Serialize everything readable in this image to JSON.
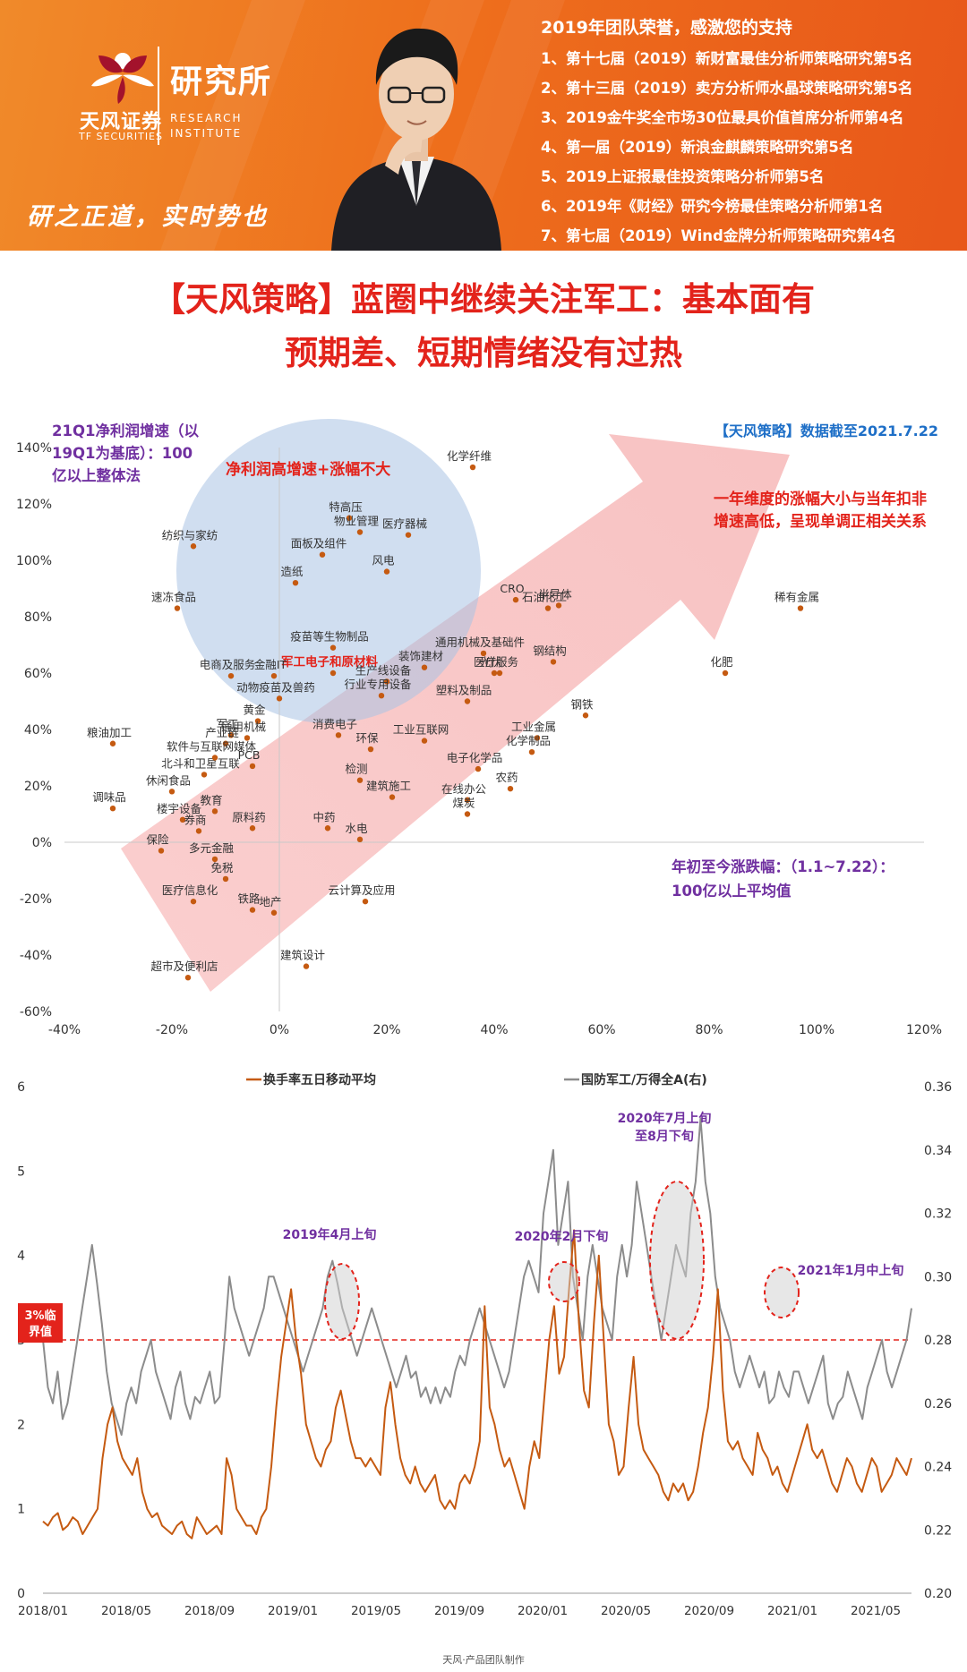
{
  "banner": {
    "logo_name": "天风证券",
    "logo_sub": "TF SECURITIES",
    "institute_cn": "研究所",
    "institute_en": [
      "RESEARCH",
      "INSTITUTE"
    ],
    "slogan": "研之正道，实时势也",
    "honors_title": "2019年团队荣誉，感激您的支持",
    "honors": [
      "1、第十七届（2019）新财富最佳分析师策略研究第5名",
      "2、第十三届（2019）卖方分析师水晶球策略研究第5名",
      "3、2019金牛奖全市场30位最具价值首席分析师第4名",
      "4、第一届（2019）新浪金麒麟策略研究第5名",
      "5、2019上证报最佳投资策略分析师第5名",
      "6、2019年《财经》研究今榜最佳策略分析师第1名",
      "7、第七届（2019）Wind金牌分析师策略研究第4名"
    ],
    "colors": {
      "banner": "#ee6f1c",
      "title_red": "#e3231b"
    }
  },
  "title_lines": [
    "【天风策略】蓝圈中继续关注军工：基本面有",
    "预期差、短期情绪没有过热"
  ],
  "scatter_annotations": {
    "ylabel": "21Q1净利润增速（以19Q1为基底）：100亿以上整体法",
    "ylabel_lines": [
      "21Q1净利润增速（以",
      "19Q1为基底）：100",
      "亿以上整体法"
    ],
    "source": "【天风策略】数据截至2021.7.22",
    "circle_label": "净利润高增速+涨幅不大",
    "arrow_note_lines": [
      "一年维度的涨幅大小与当年扣非",
      "增速高低，呈现单调正相关关系"
    ],
    "xlabel_lines": [
      "年初至今涨跌幅：（1.1~7.22）：",
      "100亿以上平均值"
    ],
    "highlight_label": "军工电子和原材料"
  },
  "line_annotations": {
    "threshold_label_lines": [
      "3%临",
      "界值"
    ],
    "callouts": [
      "2019年4月上旬",
      "2020年2月下旬",
      "2020年7月上旬",
      "至8月下旬",
      "2021年1月中上旬"
    ]
  },
  "chart_data": [
    {
      "type": "scatter",
      "xlabel": "年初至今涨跌幅：（1.1~7.22）：100亿以上平均值",
      "ylabel": "21Q1净利润增速（以19Q1为基底）：100亿以上整体法",
      "xlim": [
        -0.4,
        1.2
      ],
      "ylim": [
        -0.6,
        1.4
      ],
      "xticks": [
        "-40%",
        "-20%",
        "0%",
        "20%",
        "40%",
        "60%",
        "80%",
        "100%",
        "120%"
      ],
      "yticks": [
        "-60%",
        "-40%",
        "-20%",
        "0%",
        "20%",
        "40%",
        "60%",
        "80%",
        "100%",
        "120%",
        "140%"
      ],
      "point_color": "#c55a11",
      "points": [
        {
          "label": "化学纤维",
          "x": 0.36,
          "y": 1.33
        },
        {
          "label": "纺织与家纺",
          "x": -0.16,
          "y": 1.05
        },
        {
          "label": "特高压",
          "x": 0.13,
          "y": 1.15
        },
        {
          "label": "医疗器械",
          "x": 0.24,
          "y": 1.09
        },
        {
          "label": "物业管理",
          "x": 0.15,
          "y": 1.1
        },
        {
          "label": "面板及组件",
          "x": 0.08,
          "y": 1.02
        },
        {
          "label": "风电",
          "x": 0.2,
          "y": 0.96
        },
        {
          "label": "造纸",
          "x": 0.03,
          "y": 0.92
        },
        {
          "label": "速冻食品",
          "x": -0.19,
          "y": 0.83
        },
        {
          "label": "CRO",
          "x": 0.44,
          "y": 0.86
        },
        {
          "label": "半导体",
          "x": 0.52,
          "y": 0.84
        },
        {
          "label": "石油化工",
          "x": 0.5,
          "y": 0.83
        },
        {
          "label": "稀有金属",
          "x": 0.97,
          "y": 0.83
        },
        {
          "label": "疫苗等生物制品",
          "x": 0.1,
          "y": 0.69
        },
        {
          "label": "通用机械及基础件",
          "x": 0.38,
          "y": 0.67
        },
        {
          "label": "钢结构",
          "x": 0.51,
          "y": 0.64
        },
        {
          "label": "装饰建材",
          "x": 0.27,
          "y": 0.62
        },
        {
          "label": "医疗服务",
          "x": 0.41,
          "y": 0.6
        },
        {
          "label": "光伏",
          "x": 0.4,
          "y": 0.6
        },
        {
          "label": "化肥",
          "x": 0.83,
          "y": 0.6
        },
        {
          "label": "军工电子和原材料",
          "x": 0.1,
          "y": 0.6
        },
        {
          "label": "金融IT",
          "x": -0.01,
          "y": 0.59
        },
        {
          "label": "生产线设备",
          "x": 0.2,
          "y": 0.57
        },
        {
          "label": "塑料及制品",
          "x": 0.35,
          "y": 0.5
        },
        {
          "label": "电商及服务",
          "x": -0.09,
          "y": 0.59
        },
        {
          "label": "动物疫苗及兽药",
          "x": 0.0,
          "y": 0.51
        },
        {
          "label": "行业专用设备",
          "x": 0.19,
          "y": 0.52
        },
        {
          "label": "钢铁",
          "x": 0.57,
          "y": 0.45
        },
        {
          "label": "黄金",
          "x": -0.04,
          "y": 0.43
        },
        {
          "label": "粮油加工",
          "x": -0.31,
          "y": 0.35
        },
        {
          "label": "军工",
          "x": -0.09,
          "y": 0.38
        },
        {
          "label": "通用机械",
          "x": -0.06,
          "y": 0.37
        },
        {
          "label": "产业链",
          "x": -0.1,
          "y": 0.35
        },
        {
          "label": "消费电子",
          "x": 0.11,
          "y": 0.38
        },
        {
          "label": "工业互联网",
          "x": 0.27,
          "y": 0.36
        },
        {
          "label": "工业金属",
          "x": 0.48,
          "y": 0.37
        },
        {
          "label": "环保",
          "x": 0.17,
          "y": 0.33
        },
        {
          "label": "化学制品",
          "x": 0.47,
          "y": 0.32
        },
        {
          "label": "电子化学品",
          "x": 0.37,
          "y": 0.26
        },
        {
          "label": "PCB",
          "x": -0.05,
          "y": 0.27
        },
        {
          "label": "北斗和卫星互联",
          "x": -0.14,
          "y": 0.24
        },
        {
          "label": "软件与互联网媒体",
          "x": -0.12,
          "y": 0.3
        },
        {
          "label": "检测",
          "x": 0.15,
          "y": 0.22
        },
        {
          "label": "农药",
          "x": 0.43,
          "y": 0.19
        },
        {
          "label": "在线办公",
          "x": 0.35,
          "y": 0.15
        },
        {
          "label": "煤炭",
          "x": 0.35,
          "y": 0.1
        },
        {
          "label": "调味品",
          "x": -0.31,
          "y": 0.12
        },
        {
          "label": "休闲食品",
          "x": -0.2,
          "y": 0.18
        },
        {
          "label": "楼宇设备",
          "x": -0.18,
          "y": 0.08
        },
        {
          "label": "券商",
          "x": -0.15,
          "y": 0.04
        },
        {
          "label": "教育",
          "x": -0.12,
          "y": 0.11
        },
        {
          "label": "原料药",
          "x": -0.05,
          "y": 0.05
        },
        {
          "label": "中药",
          "x": 0.09,
          "y": 0.05
        },
        {
          "label": "水电",
          "x": 0.15,
          "y": 0.01
        },
        {
          "label": "建筑施工",
          "x": 0.21,
          "y": 0.16
        },
        {
          "label": "保险",
          "x": -0.22,
          "y": -0.03
        },
        {
          "label": "多元金融",
          "x": -0.12,
          "y": -0.06
        },
        {
          "label": "免税",
          "x": -0.1,
          "y": -0.13
        },
        {
          "label": "医疗信息化",
          "x": -0.16,
          "y": -0.21
        },
        {
          "label": "铁路",
          "x": -0.05,
          "y": -0.24
        },
        {
          "label": "地产",
          "x": -0.01,
          "y": -0.25
        },
        {
          "label": "云计算及应用",
          "x": 0.16,
          "y": -0.21
        },
        {
          "label": "建筑设计",
          "x": 0.05,
          "y": -0.44
        },
        {
          "label": "超市及便利店",
          "x": -0.17,
          "y": -0.48
        }
      ]
    },
    {
      "type": "line",
      "x_ticks": [
        "2018/01",
        "2018/05",
        "2018/09",
        "2019/01",
        "2019/05",
        "2019/09",
        "2020/01",
        "2020/05",
        "2020/09",
        "2021/01",
        "2021/05"
      ],
      "ylim_left": [
        0,
        6
      ],
      "ylim_right": [
        0.2,
        0.36
      ],
      "yticks_left": [
        "0",
        "1",
        "2",
        "3",
        "4",
        "5",
        "6"
      ],
      "yticks_right": [
        "0.20",
        "0.22",
        "0.24",
        "0.26",
        "0.28",
        "0.30",
        "0.32",
        "0.34",
        "0.36"
      ],
      "threshold": 3,
      "series": [
        {
          "name": "换手率五日移动平均",
          "axis": "left",
          "color": "#c55a11",
          "values": [
            0.85,
            0.8,
            0.9,
            0.95,
            0.75,
            0.8,
            0.9,
            0.85,
            0.7,
            0.8,
            0.9,
            1.0,
            1.6,
            2.0,
            2.2,
            1.8,
            1.6,
            1.5,
            1.4,
            1.6,
            1.2,
            1.0,
            0.9,
            0.95,
            0.8,
            0.75,
            0.7,
            0.8,
            0.85,
            0.7,
            0.65,
            0.9,
            0.8,
            0.7,
            0.75,
            0.8,
            0.7,
            1.6,
            1.4,
            1.0,
            0.9,
            0.8,
            0.8,
            0.7,
            0.9,
            1.0,
            1.5,
            2.2,
            2.8,
            3.2,
            3.6,
            3.0,
            2.6,
            2.0,
            1.8,
            1.6,
            1.5,
            1.7,
            1.8,
            2.2,
            2.4,
            2.1,
            1.8,
            1.6,
            1.6,
            1.5,
            1.6,
            1.5,
            1.4,
            2.2,
            2.5,
            2.0,
            1.6,
            1.4,
            1.3,
            1.5,
            1.3,
            1.2,
            1.3,
            1.4,
            1.1,
            1.0,
            1.1,
            1.0,
            1.3,
            1.4,
            1.3,
            1.5,
            1.8,
            3.4,
            2.2,
            2.0,
            1.7,
            1.5,
            1.6,
            1.4,
            1.2,
            1.0,
            1.5,
            1.8,
            1.6,
            2.3,
            3.0,
            3.4,
            2.6,
            2.8,
            3.6,
            4.3,
            3.2,
            2.4,
            2.2,
            3.2,
            4.0,
            3.0,
            2.0,
            1.8,
            1.4,
            1.5,
            2.2,
            2.8,
            2.0,
            1.7,
            1.6,
            1.5,
            1.4,
            1.2,
            1.1,
            1.3,
            1.2,
            1.3,
            1.1,
            1.2,
            1.5,
            1.9,
            2.2,
            2.8,
            3.6,
            2.4,
            1.8,
            1.7,
            1.8,
            1.6,
            1.5,
            1.4,
            1.9,
            1.7,
            1.6,
            1.4,
            1.5,
            1.3,
            1.2,
            1.4,
            1.6,
            1.8,
            2.0,
            1.7,
            1.6,
            1.7,
            1.5,
            1.3,
            1.2,
            1.4,
            1.6,
            1.5,
            1.3,
            1.2,
            1.4,
            1.6,
            1.5,
            1.2,
            1.3,
            1.4,
            1.6,
            1.5,
            1.4,
            1.6
          ]
        },
        {
          "name": "国防军工/万得全A(右)",
          "axis": "right",
          "color": "#8c8c8c",
          "values": [
            0.28,
            0.265,
            0.26,
            0.27,
            0.255,
            0.26,
            0.27,
            0.28,
            0.29,
            0.3,
            0.31,
            0.298,
            0.285,
            0.27,
            0.26,
            0.255,
            0.25,
            0.26,
            0.265,
            0.26,
            0.27,
            0.275,
            0.28,
            0.27,
            0.265,
            0.26,
            0.255,
            0.265,
            0.27,
            0.26,
            0.255,
            0.262,
            0.26,
            0.265,
            0.27,
            0.26,
            0.262,
            0.28,
            0.3,
            0.29,
            0.285,
            0.28,
            0.275,
            0.28,
            0.285,
            0.29,
            0.3,
            0.3,
            0.295,
            0.29,
            0.285,
            0.28,
            0.275,
            0.27,
            0.275,
            0.28,
            0.285,
            0.29,
            0.3,
            0.305,
            0.298,
            0.29,
            0.285,
            0.28,
            0.275,
            0.28,
            0.285,
            0.29,
            0.285,
            0.28,
            0.275,
            0.27,
            0.265,
            0.27,
            0.275,
            0.268,
            0.27,
            0.262,
            0.265,
            0.26,
            0.265,
            0.26,
            0.265,
            0.262,
            0.27,
            0.275,
            0.272,
            0.28,
            0.285,
            0.29,
            0.285,
            0.28,
            0.275,
            0.27,
            0.265,
            0.27,
            0.28,
            0.29,
            0.3,
            0.305,
            0.3,
            0.295,
            0.32,
            0.33,
            0.34,
            0.31,
            0.32,
            0.33,
            0.3,
            0.29,
            0.28,
            0.3,
            0.31,
            0.3,
            0.29,
            0.285,
            0.28,
            0.3,
            0.31,
            0.3,
            0.31,
            0.33,
            0.32,
            0.31,
            0.3,
            0.29,
            0.28,
            0.29,
            0.3,
            0.31,
            0.305,
            0.3,
            0.32,
            0.33,
            0.35,
            0.33,
            0.32,
            0.3,
            0.29,
            0.285,
            0.28,
            0.27,
            0.265,
            0.27,
            0.275,
            0.27,
            0.265,
            0.27,
            0.26,
            0.262,
            0.27,
            0.265,
            0.262,
            0.27,
            0.27,
            0.265,
            0.26,
            0.265,
            0.27,
            0.275,
            0.26,
            0.255,
            0.26,
            0.262,
            0.27,
            0.265,
            0.26,
            0.255,
            0.265,
            0.27,
            0.275,
            0.28,
            0.27,
            0.265,
            0.27,
            0.275,
            0.28,
            0.29
          ]
        }
      ]
    }
  ],
  "footer": "天风·产品团队制作"
}
